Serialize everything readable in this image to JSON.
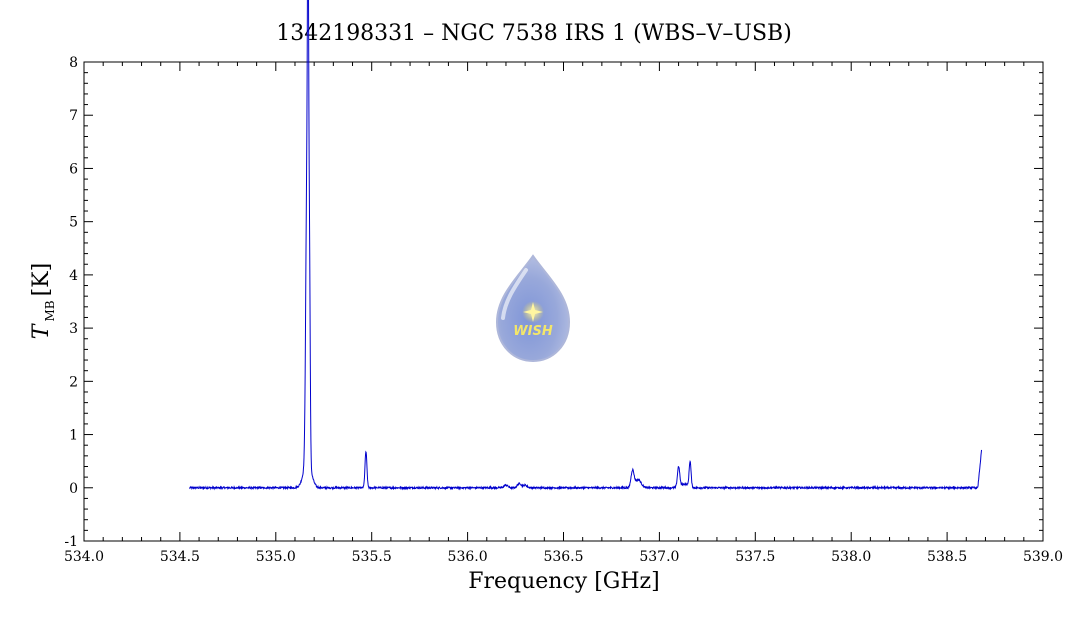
{
  "chart_data": {
    "type": "line",
    "title": "1342198331 – NGC 7538 IRS 1 (WBS–V–USB)",
    "xlabel": "Frequency [GHz]",
    "ylabel": {
      "symbol": "T",
      "subscript": "MB",
      "unit": "[K]"
    },
    "xlim": [
      534.0,
      539.0
    ],
    "ylim": [
      -1,
      8
    ],
    "x_ticks": [
      "534.0",
      "534.5",
      "535.0",
      "535.5",
      "536.0",
      "536.5",
      "537.0",
      "537.5",
      "538.0",
      "538.5",
      "539.0"
    ],
    "y_ticks": [
      "-1",
      "0",
      "1",
      "2",
      "3",
      "4",
      "5",
      "6",
      "7",
      "8"
    ],
    "line_color": "#0000cc",
    "grid": false,
    "series": [
      {
        "x_range": [
          534.55,
          538.68
        ],
        "baseline": 0.0,
        "noise_rms": 0.01,
        "features": [
          {
            "x": 535.162,
            "peak": 5.3,
            "width": 0.006
          },
          {
            "x": 535.168,
            "peak": 6.8,
            "width": 0.003
          },
          {
            "x": 535.175,
            "peak": 4.1,
            "width": 0.004
          },
          {
            "x": 535.165,
            "peak": 0.5,
            "width": 0.02
          },
          {
            "x": 535.47,
            "peak": 0.68,
            "width": 0.005
          },
          {
            "x": 536.2,
            "peak": 0.05,
            "width": 0.01
          },
          {
            "x": 536.27,
            "peak": 0.08,
            "width": 0.01
          },
          {
            "x": 536.3,
            "peak": 0.05,
            "width": 0.01
          },
          {
            "x": 536.86,
            "peak": 0.32,
            "width": 0.008
          },
          {
            "x": 536.89,
            "peak": 0.15,
            "width": 0.015
          },
          {
            "x": 537.1,
            "peak": 0.38,
            "width": 0.006
          },
          {
            "x": 537.16,
            "peak": 0.48,
            "width": 0.005
          },
          {
            "x": 537.13,
            "peak": 0.07,
            "width": 0.02
          }
        ],
        "right_edge": {
          "x": 538.66,
          "value": 0.72
        }
      }
    ]
  },
  "watermark": {
    "text": "WISH"
  }
}
